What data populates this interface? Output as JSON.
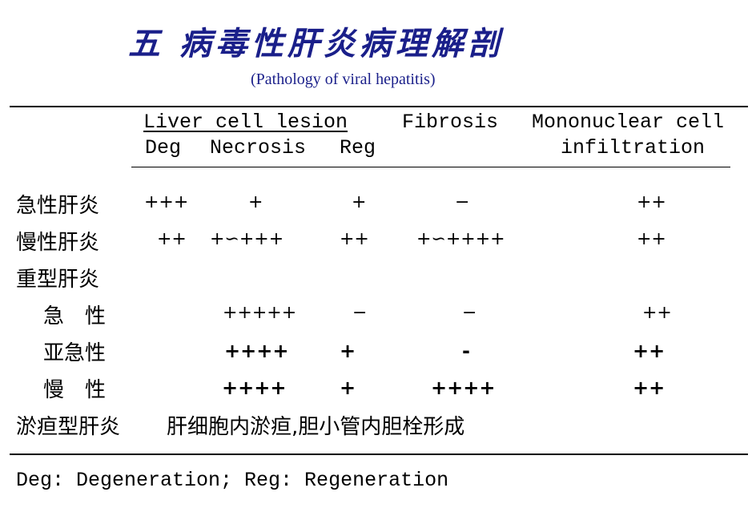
{
  "title": "五 病毒性肝炎病理解剖",
  "subtitle": "(Pathology of viral hepatitis)",
  "header": {
    "group": "Liver cell lesion",
    "fibrosis": "Fibrosis",
    "mono_line1": "Mononuclear cell",
    "mono_line2": "infiltration",
    "deg": "Deg",
    "necrosis": "Necrosis",
    "reg": "Reg"
  },
  "rows": {
    "acute": {
      "label": "急性肝炎",
      "deg": "+++",
      "nec": "+",
      "reg": "+",
      "fib": "−",
      "mono": "++"
    },
    "chronic": {
      "label": "慢性肝炎",
      "deg": "++",
      "nec": "+∽+++",
      "reg": "++",
      "fib": "+∽++++",
      "mono": "++"
    },
    "severe": {
      "label": "重型肝炎"
    },
    "sev_acute": {
      "label": "急　性",
      "nec": "+++++",
      "reg": "−",
      "fib": "−",
      "mono": "++"
    },
    "sev_subacute": {
      "label": "亚急性",
      "nec": "++++",
      "reg": "+",
      "fib": "-",
      "mono": "++"
    },
    "sev_chronic": {
      "label": "慢　性",
      "nec": "++++",
      "reg": "+",
      "fib": "++++",
      "mono": "++"
    },
    "cholestatic": {
      "label": "淤疸型肝炎",
      "note": "肝细胞内淤疸,胆小管内胆栓形成"
    }
  },
  "footer": "Deg: Degeneration;  Reg: Regeneration"
}
